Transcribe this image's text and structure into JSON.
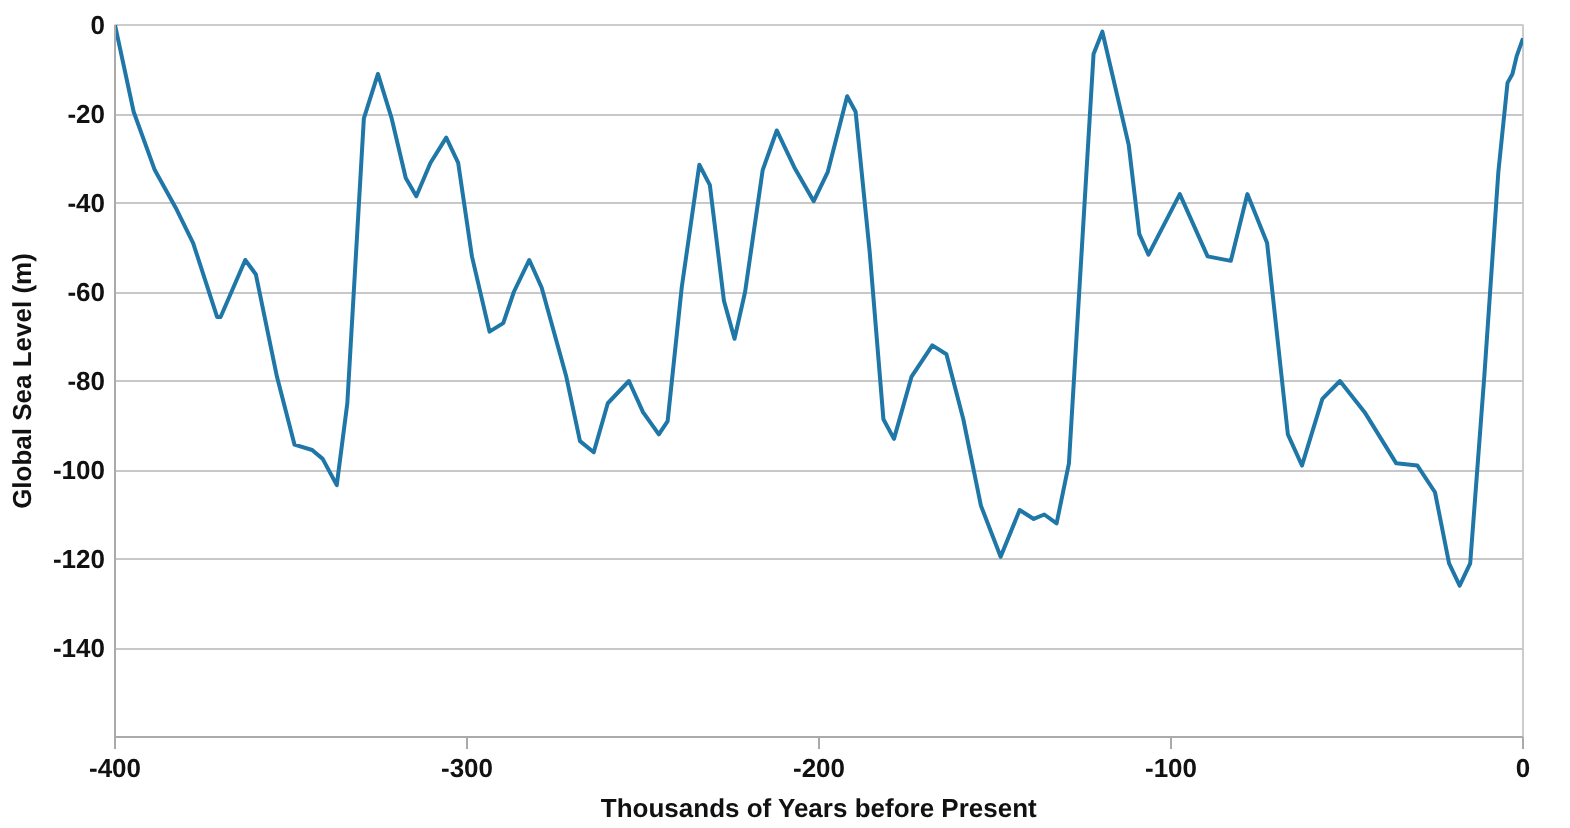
{
  "chart_data": {
    "type": "line",
    "xlabel": "Thousands of Years before Present",
    "ylabel": "Global Sea Level (m)",
    "xlim": [
      -400,
      0
    ],
    "ylim": [
      -160,
      0
    ],
    "xticks": [
      -400,
      -300,
      -200,
      -100,
      0
    ],
    "yticks": [
      -140,
      -120,
      -100,
      -80,
      -60,
      -40,
      -20,
      0
    ],
    "grid": "y",
    "marker": "none",
    "line_style": "solid",
    "series": [
      {
        "color": "#1f77a8",
        "x": [
          -400,
          -394.7,
          -388.7,
          -382.8,
          -377.8,
          -371,
          -370,
          -363,
          -360,
          -354,
          -349,
          -344,
          -341,
          -337,
          -334,
          -329.3,
          -325.3,
          -321.4,
          -317.4,
          -314.4,
          -310.4,
          -305.9,
          -302.5,
          -298.6,
          -293.6,
          -289.7,
          -286.7,
          -282.3,
          -278.8,
          -271.8,
          -267.9,
          -264,
          -260,
          -254,
          -250,
          -245.5,
          -243,
          -239,
          -234,
          -231,
          -227,
          -224,
          -221,
          -216,
          -212,
          -207,
          -201.5,
          -197.5,
          -192,
          -189.6,
          -185.6,
          -181.7,
          -178.7,
          -173.7,
          -167.8,
          -163.8,
          -159,
          -154,
          -148.4,
          -143,
          -139,
          -136,
          -132.5,
          -129,
          -126,
          -122,
          -119.5,
          -112,
          -109,
          -106.4,
          -97.5,
          -89.6,
          -83,
          -78.3,
          -72.7,
          -66.8,
          -62.8,
          -57,
          -52,
          -45,
          -36,
          -30,
          -25,
          -21,
          -18,
          -15,
          -11,
          -7,
          -4.4,
          -3,
          -1.8,
          0
        ],
        "values": [
          0,
          -19.5,
          -32.6,
          -41,
          -49,
          -65.6,
          -65.6,
          -52.8,
          -56,
          -79,
          -94.3,
          -95.5,
          -97.5,
          -103.4,
          -85,
          -21,
          -11,
          -21,
          -34.4,
          -38.5,
          -31,
          -25.3,
          -31,
          -52,
          -68.9,
          -67,
          -60,
          -52.8,
          -59,
          -79,
          -93.5,
          -96,
          -85,
          -80,
          -87,
          -92,
          -89,
          -59,
          -31.4,
          -36,
          -62,
          -70.5,
          -60,
          -32.6,
          -23.7,
          -32,
          -39.6,
          -33,
          -16,
          -19.5,
          -51,
          -88.6,
          -93,
          -79,
          -72,
          -74,
          -88.6,
          -108,
          -119.5,
          -109,
          -111,
          -110,
          -112,
          -98.5,
          -59,
          -6.5,
          -1.5,
          -27,
          -47,
          -51.6,
          -38,
          -52,
          -53,
          -38,
          -49,
          -92,
          -99,
          -84,
          -80,
          -87,
          -98.5,
          -99,
          -105,
          -121,
          -126,
          -121,
          -79,
          -33,
          -13,
          -11,
          -7,
          -3
        ]
      }
    ]
  }
}
